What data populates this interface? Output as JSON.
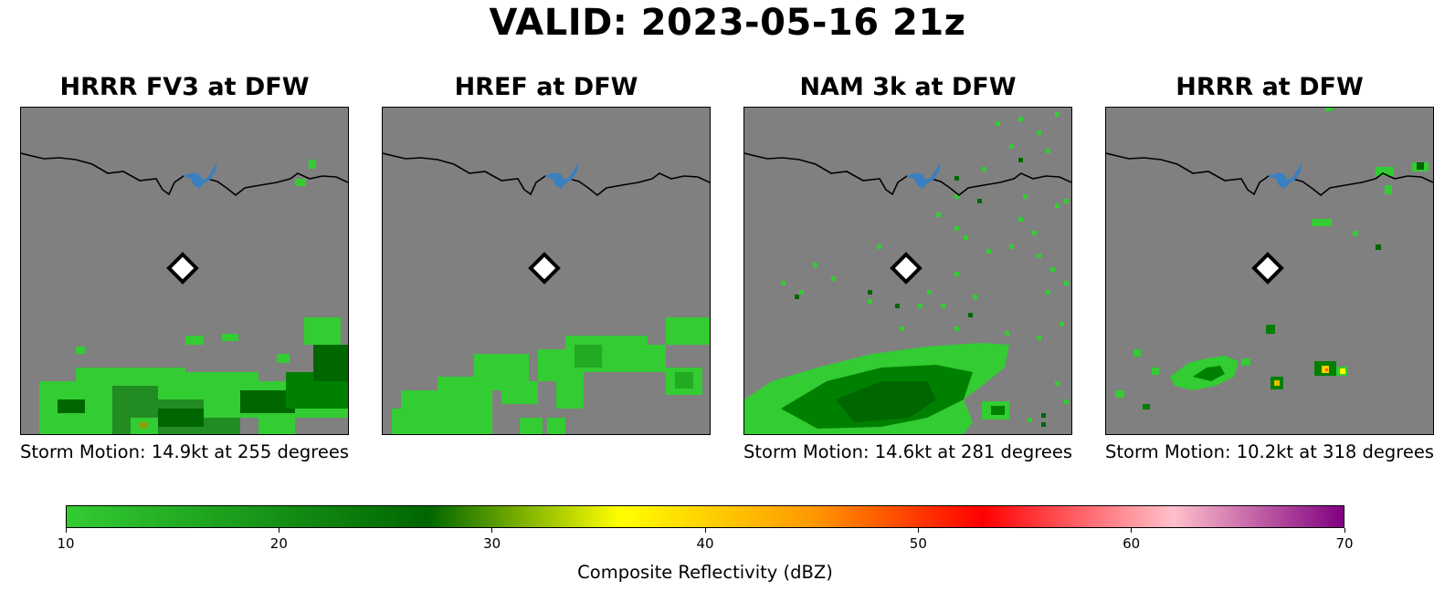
{
  "title": "VALID: 2023-05-16 21z",
  "panels": [
    {
      "title": "HRRR FV3 at DFW",
      "motion": "Storm Motion: 14.9kt at 255 degrees"
    },
    {
      "title": "HREF at DFW",
      "motion": ""
    },
    {
      "title": "NAM 3k at DFW",
      "motion": "Storm Motion: 14.6kt at 281 degrees"
    },
    {
      "title": "HRRR at DFW",
      "motion": "Storm Motion: 10.2kt at 318 degrees"
    }
  ],
  "colorbar": {
    "label": "Composite Reflectivity (dBZ)",
    "ticks": [
      "10",
      "20",
      "30",
      "40",
      "50",
      "60",
      "70"
    ],
    "range": [
      10,
      70
    ],
    "stops": [
      {
        "value": 10,
        "color": "#33cc33"
      },
      {
        "value": 27,
        "color": "#006600"
      },
      {
        "value": 36,
        "color": "#ffff00"
      },
      {
        "value": 45,
        "color": "#ff9900"
      },
      {
        "value": 53,
        "color": "#ff0000"
      },
      {
        "value": 62,
        "color": "#ffc0cb"
      },
      {
        "value": 70,
        "color": "#800080"
      }
    ]
  },
  "colors": {
    "background_map": "#808080",
    "light_echo": "#33cc33",
    "dark_echo": "#008000",
    "boundary": "#000000",
    "lake": "#3a7fc1",
    "station_marker_fill": "#ffffff"
  },
  "map_markers": {
    "station": "DFW",
    "marker_icon": "diamond-icon"
  }
}
